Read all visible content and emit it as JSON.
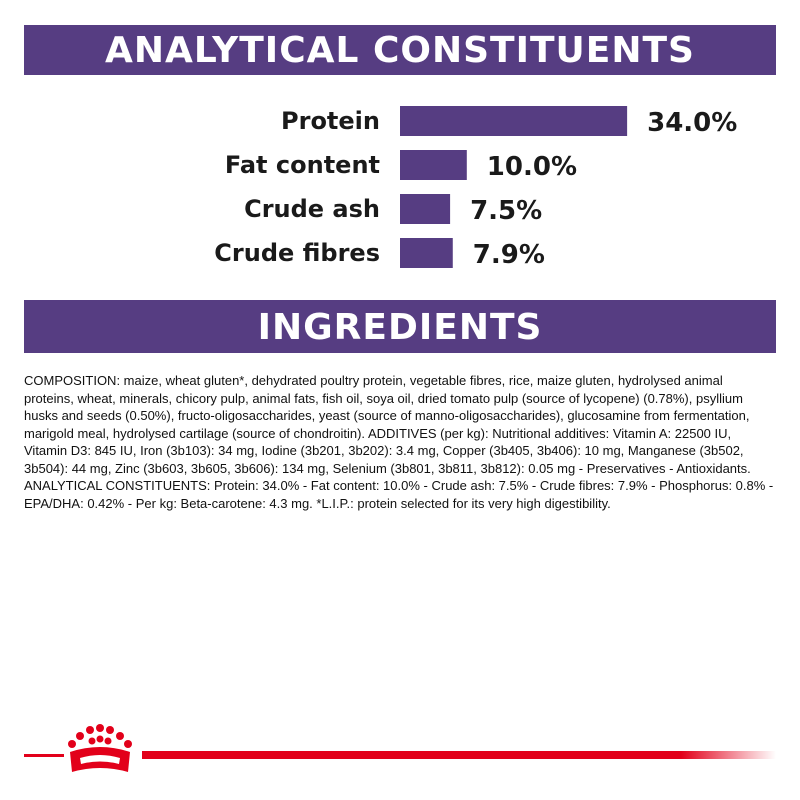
{
  "chart_data": {
    "type": "hbar",
    "title": "ANALYTICAL CONSTITUENTS",
    "categories": [
      "Protein",
      "Fat content",
      "Crude ash",
      "Crude fibres"
    ],
    "values": [
      34.0,
      10.0,
      7.5,
      7.9
    ],
    "value_labels": [
      "34.0%",
      "10.0%",
      "7.5%",
      "7.9%"
    ],
    "color": "#563d82"
  },
  "ingredients": {
    "title": "INGREDIENTS",
    "text": "COMPOSITION: maize, wheat gluten*, dehydrated poultry protein, vegetable fibres, rice, maize gluten, hydrolysed animal proteins, wheat, minerals, chicory pulp, animal fats, fish oil, soya oil, dried tomato pulp (source of lycopene) (0.78%), psyllium husks and seeds (0.50%), fructo-oligosaccharides, yeast (source of manno-oligosaccharides), glucosamine from fermentation, marigold meal, hydrolysed cartilage (source of chondroitin). ADDITIVES (per kg): Nutritional additives: Vitamin A: 22500 IU, Vitamin D3: 845 IU, Iron (3b103): 34 mg, Iodine (3b201, 3b202): 3.4 mg, Copper (3b405, 3b406): 10 mg, Manganese (3b502, 3b504): 44 mg, Zinc (3b603, 3b605, 3b606): 134 mg, Selenium (3b801, 3b811, 3b812): 0.05 mg - Preservatives - Antioxidants. ANALYTICAL CONSTITUENTS: Protein: 34.0% - Fat content: 10.0% - Crude ash: 7.5% - Crude fibres: 7.9% - Phosphorus: 0.8% - EPA/DHA: 0.42% - Per kg: Beta-carotene: 4.3 mg. *L.I.P.: protein selected for its very high digestibility."
  }
}
